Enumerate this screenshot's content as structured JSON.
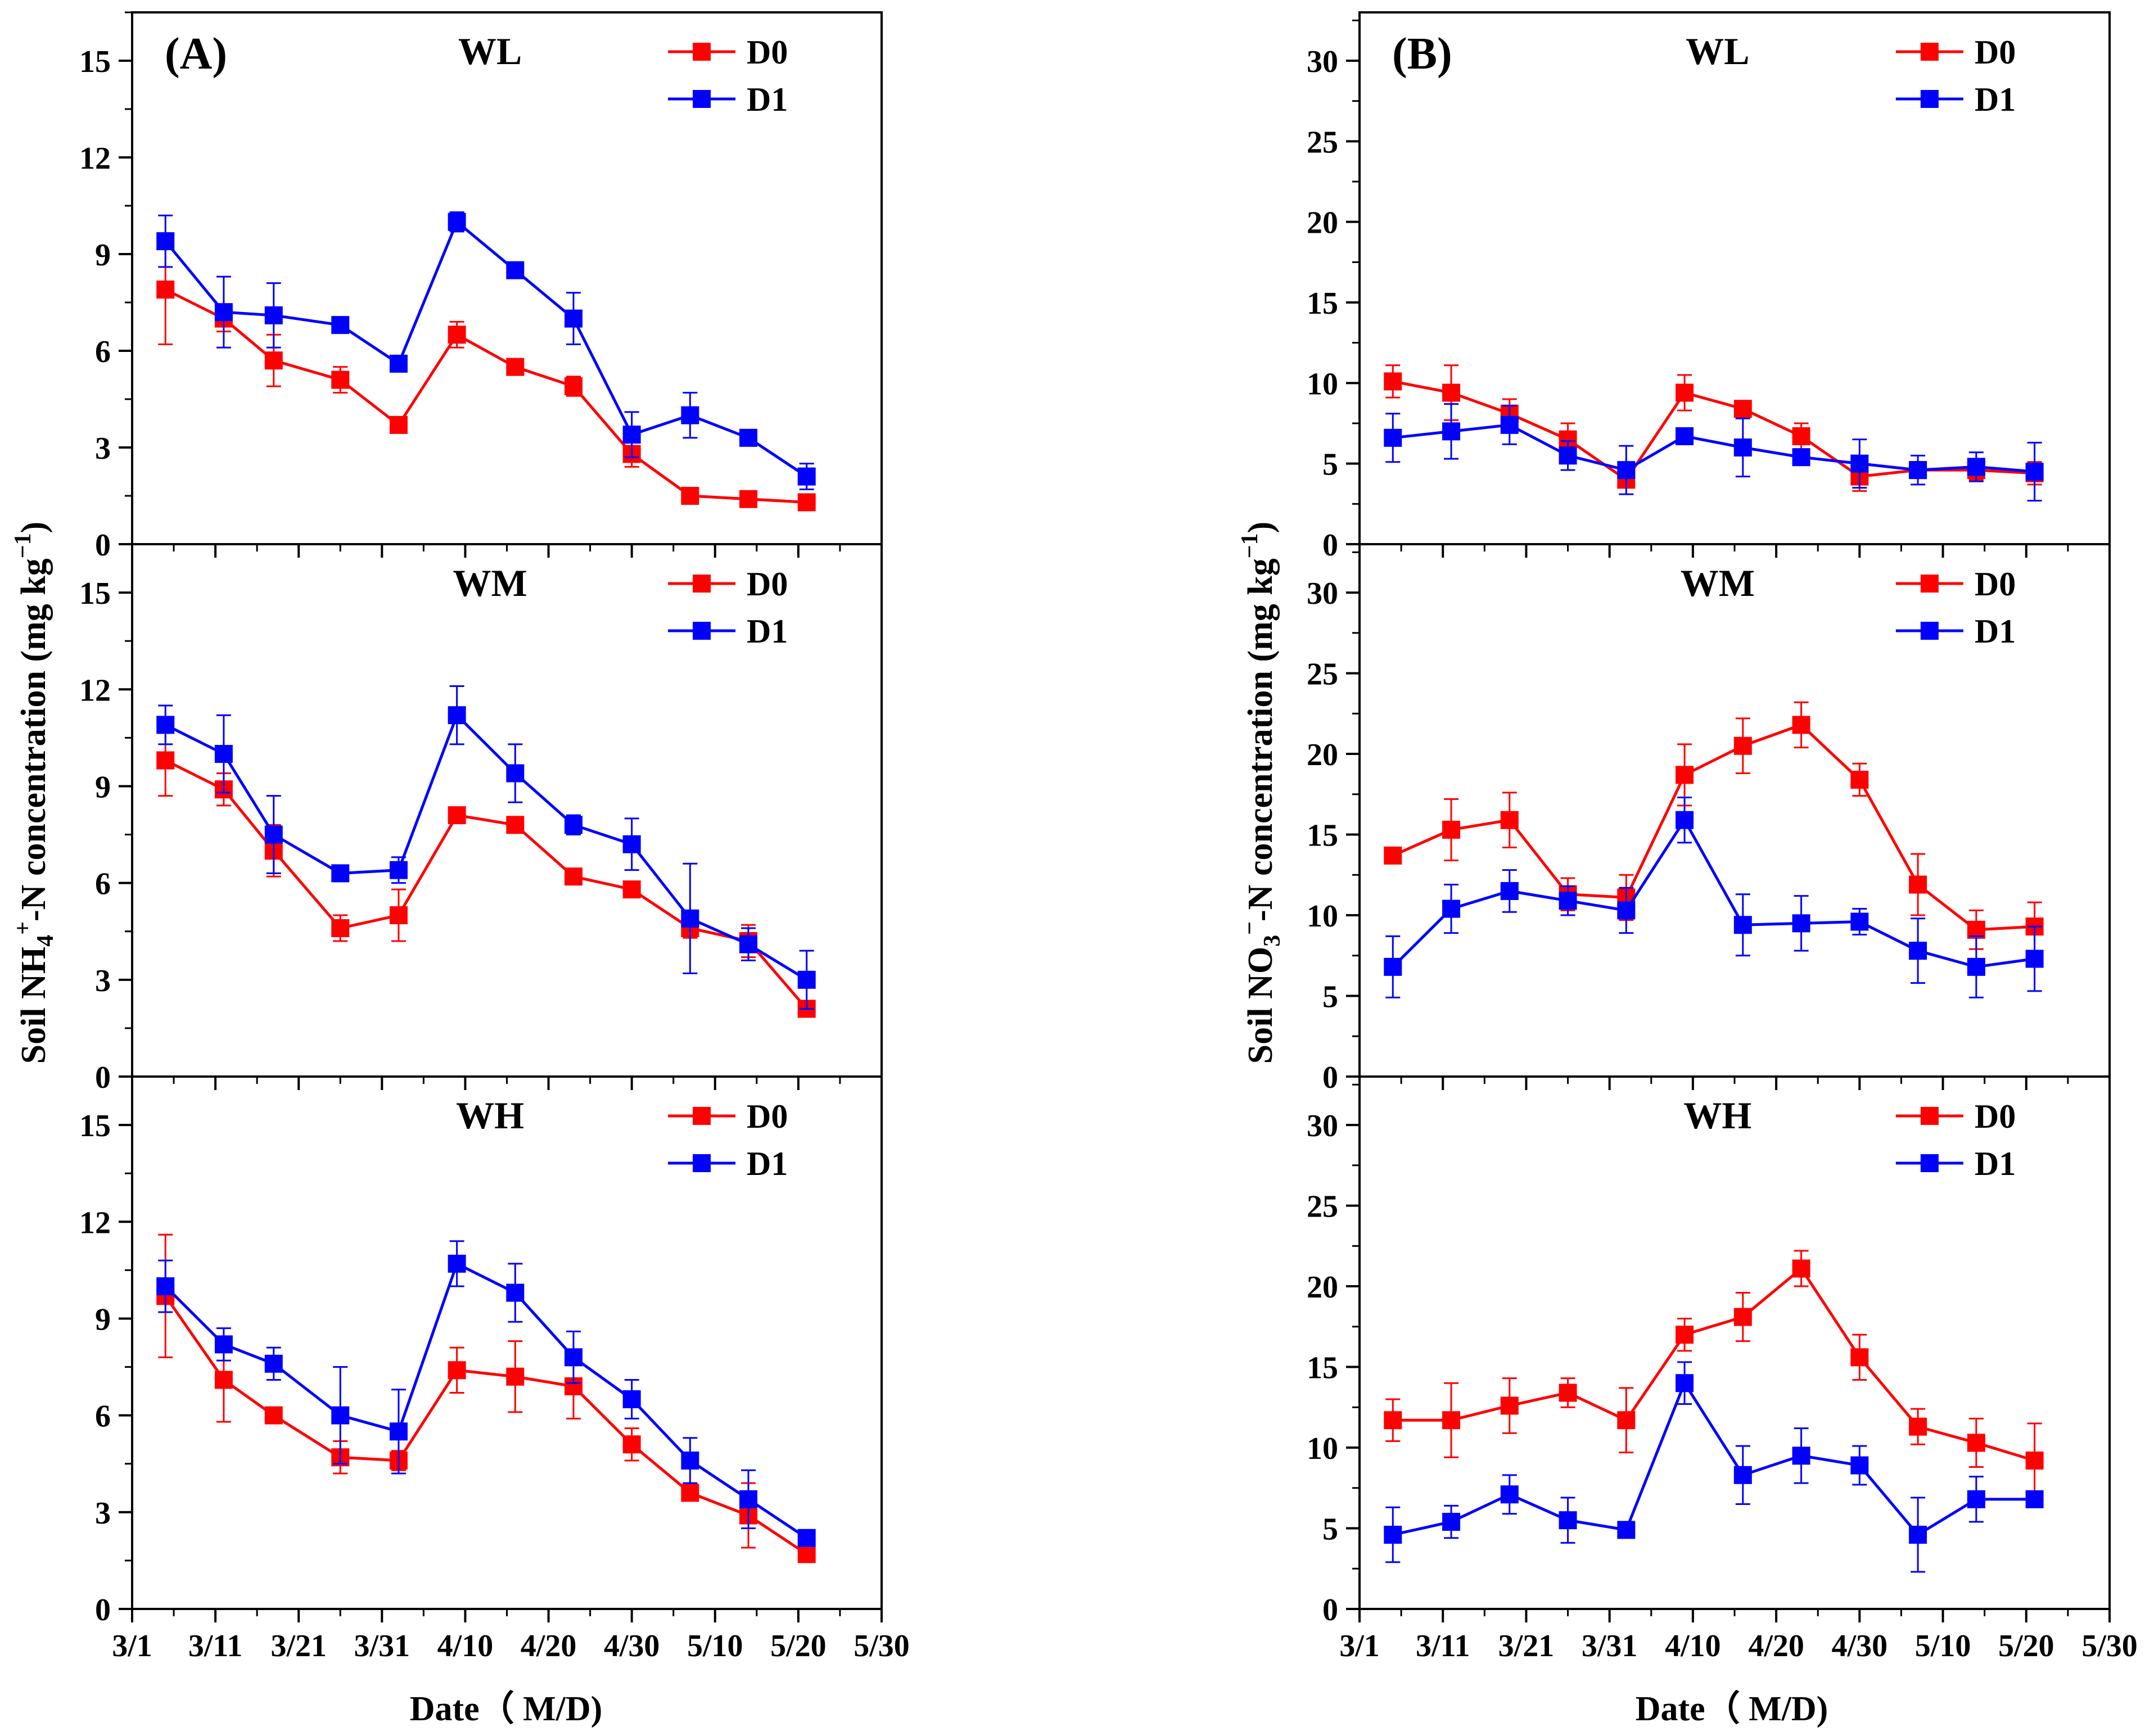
{
  "figure": {
    "x_axis_title": "Date（ M/D)",
    "colors": {
      "D0": "#ff0000",
      "D1": "#0000ff",
      "axis": "#000000"
    }
  },
  "chart_data": [
    {
      "type": "line",
      "panel": "A",
      "subplot": "WL",
      "panel_label": "(A)",
      "title": "WL",
      "ylabel": "Soil NH4+-N concentration (mg kg-1)",
      "ylim": [
        0,
        16.5
      ],
      "yticks": [
        0,
        3,
        6,
        9,
        12,
        15
      ],
      "xlim": [
        0,
        90
      ],
      "xticks": [
        0,
        10,
        20,
        30,
        40,
        50,
        60,
        70,
        80,
        90
      ],
      "xticklabels": [
        "3/1",
        "3/11",
        "3/21",
        "3/31",
        "4/10",
        "4/20",
        "4/30",
        "5/10",
        "5/20",
        "5/30"
      ],
      "x": [
        4,
        11,
        17,
        25,
        32,
        39,
        46,
        53,
        60,
        67,
        74,
        81
      ],
      "series": [
        {
          "name": "D0",
          "color": "#ff0000",
          "values": [
            7.9,
            7.0,
            5.7,
            5.1,
            3.7,
            6.5,
            5.5,
            4.9,
            2.8,
            1.5,
            1.4,
            1.3
          ],
          "err": [
            1.7,
            0.4,
            0.8,
            0.4,
            0.2,
            0.4,
            0.1,
            0.3,
            0.4,
            0.1,
            0.1,
            0.2
          ]
        },
        {
          "name": "D1",
          "color": "#0000ff",
          "values": [
            9.4,
            7.2,
            7.1,
            6.8,
            5.6,
            10.0,
            8.5,
            7.0,
            3.4,
            4.0,
            3.3,
            2.1
          ],
          "err": [
            0.8,
            1.1,
            1.0,
            0.2,
            0.1,
            0.3,
            0.1,
            0.8,
            0.7,
            0.7,
            0.1,
            0.4
          ]
        }
      ]
    },
    {
      "type": "line",
      "panel": "A",
      "subplot": "WM",
      "panel_label": "",
      "title": "WM",
      "ylabel": "Soil NH4+-N concentration (mg kg-1)",
      "ylim": [
        0,
        16.5
      ],
      "yticks": [
        0,
        3,
        6,
        9,
        12,
        15
      ],
      "xlim": [
        0,
        90
      ],
      "xticks": [
        0,
        10,
        20,
        30,
        40,
        50,
        60,
        70,
        80,
        90
      ],
      "xticklabels": [
        "3/1",
        "3/11",
        "3/21",
        "3/31",
        "4/10",
        "4/20",
        "4/30",
        "5/10",
        "5/20",
        "5/30"
      ],
      "x": [
        4,
        11,
        17,
        25,
        32,
        39,
        46,
        53,
        60,
        67,
        74,
        81
      ],
      "series": [
        {
          "name": "D0",
          "color": "#ff0000",
          "values": [
            9.8,
            8.9,
            7.0,
            4.6,
            5.0,
            8.1,
            7.8,
            6.2,
            5.8,
            4.6,
            4.2,
            2.1
          ],
          "err": [
            1.1,
            0.5,
            0.8,
            0.4,
            0.8,
            0.1,
            0.1,
            0.1,
            0.2,
            0.3,
            0.5,
            0.2
          ]
        },
        {
          "name": "D1",
          "color": "#0000ff",
          "values": [
            10.9,
            10.0,
            7.5,
            6.3,
            6.4,
            11.2,
            9.4,
            7.8,
            7.2,
            4.9,
            4.1,
            3.0
          ],
          "err": [
            0.6,
            1.2,
            1.2,
            0.1,
            0.4,
            0.9,
            0.9,
            0.3,
            0.8,
            1.7,
            0.5,
            0.9
          ]
        }
      ]
    },
    {
      "type": "line",
      "panel": "A",
      "subplot": "WH",
      "panel_label": "",
      "title": "WH",
      "ylabel": "Soil NH4+-N concentration (mg kg-1)",
      "ylim": [
        0,
        16.5
      ],
      "yticks": [
        0,
        3,
        6,
        9,
        12,
        15
      ],
      "xlim": [
        0,
        90
      ],
      "xticks": [
        0,
        10,
        20,
        30,
        40,
        50,
        60,
        70,
        80,
        90
      ],
      "xticklabels": [
        "3/1",
        "3/11",
        "3/21",
        "3/31",
        "4/10",
        "4/20",
        "4/30",
        "5/10",
        "5/20",
        "5/30"
      ],
      "x": [
        4,
        11,
        17,
        25,
        32,
        39,
        46,
        53,
        60,
        67,
        74,
        81
      ],
      "series": [
        {
          "name": "D0",
          "color": "#ff0000",
          "values": [
            9.7,
            7.1,
            6.0,
            4.7,
            4.6,
            7.4,
            7.2,
            6.9,
            5.1,
            3.6,
            2.9,
            1.7
          ],
          "err": [
            1.9,
            1.3,
            0.2,
            0.5,
            0.3,
            0.7,
            1.1,
            1.0,
            0.5,
            0.2,
            1.0,
            0.2
          ]
        },
        {
          "name": "D1",
          "color": "#0000ff",
          "values": [
            10.0,
            8.2,
            7.6,
            6.0,
            5.5,
            10.7,
            9.8,
            7.8,
            6.5,
            4.6,
            3.4,
            2.2
          ],
          "err": [
            0.8,
            0.5,
            0.5,
            1.5,
            1.3,
            0.7,
            0.9,
            0.8,
            0.6,
            0.7,
            0.9,
            0.2
          ]
        }
      ]
    },
    {
      "type": "line",
      "panel": "B",
      "subplot": "WL",
      "panel_label": "(B)",
      "title": "WL",
      "ylabel": "Soil NO3--N concentration (mg kg-1)",
      "ylim": [
        0,
        33
      ],
      "yticks": [
        0,
        5,
        10,
        15,
        20,
        25,
        30
      ],
      "xlim": [
        0,
        90
      ],
      "xticks": [
        0,
        10,
        20,
        30,
        40,
        50,
        60,
        70,
        80,
        90
      ],
      "xticklabels": [
        "3/1",
        "3/11",
        "3/21",
        "3/31",
        "4/10",
        "4/20",
        "4/30",
        "5/10",
        "5/20",
        "5/30"
      ],
      "x": [
        4,
        11,
        18,
        25,
        32,
        39,
        46,
        53,
        60,
        67,
        74,
        81
      ],
      "series": [
        {
          "name": "D0",
          "color": "#ff0000",
          "values": [
            10.1,
            9.4,
            8.1,
            6.5,
            4.0,
            9.4,
            8.4,
            6.7,
            4.2,
            4.6,
            4.6,
            4.4
          ],
          "err": [
            1.0,
            1.7,
            0.9,
            1.0,
            0.4,
            1.1,
            0.3,
            0.8,
            0.9,
            0.5,
            0.6,
            0.7
          ]
        },
        {
          "name": "D1",
          "color": "#0000ff",
          "values": [
            6.6,
            7.0,
            7.4,
            5.5,
            4.6,
            6.7,
            6.0,
            5.4,
            5.0,
            4.6,
            4.8,
            4.5
          ],
          "err": [
            1.5,
            1.7,
            1.2,
            0.9,
            1.5,
            0.3,
            1.8,
            0.4,
            1.5,
            0.9,
            0.9,
            1.8
          ]
        }
      ]
    },
    {
      "type": "line",
      "panel": "B",
      "subplot": "WM",
      "panel_label": "",
      "title": "WM",
      "ylabel": "Soil NO3--N concentration (mg kg-1)",
      "ylim": [
        0,
        33
      ],
      "yticks": [
        0,
        5,
        10,
        15,
        20,
        25,
        30
      ],
      "xlim": [
        0,
        90
      ],
      "xticks": [
        0,
        10,
        20,
        30,
        40,
        50,
        60,
        70,
        80,
        90
      ],
      "xticklabels": [
        "3/1",
        "3/11",
        "3/21",
        "3/31",
        "4/10",
        "4/20",
        "4/30",
        "5/10",
        "5/20",
        "5/30"
      ],
      "x": [
        4,
        11,
        18,
        25,
        32,
        39,
        46,
        53,
        60,
        67,
        74,
        81
      ],
      "series": [
        {
          "name": "D0",
          "color": "#ff0000",
          "values": [
            13.7,
            15.3,
            15.9,
            11.3,
            11.1,
            18.7,
            20.5,
            21.8,
            18.4,
            11.9,
            9.1,
            9.3
          ],
          "err": [
            0.2,
            1.9,
            1.7,
            1.0,
            1.4,
            1.9,
            1.7,
            1.4,
            1.0,
            1.9,
            1.2,
            1.5
          ]
        },
        {
          "name": "D1",
          "color": "#0000ff",
          "values": [
            6.8,
            10.4,
            11.5,
            10.9,
            10.3,
            15.9,
            9.4,
            9.5,
            9.6,
            7.8,
            6.8,
            7.3
          ],
          "err": [
            1.9,
            1.5,
            1.3,
            0.9,
            1.4,
            1.4,
            1.9,
            1.7,
            0.8,
            2.0,
            1.9,
            2.0
          ]
        }
      ]
    },
    {
      "type": "line",
      "panel": "B",
      "subplot": "WH",
      "panel_label": "",
      "title": "WH",
      "ylabel": "Soil NO3--N concentration (mg kg-1)",
      "ylim": [
        0,
        33
      ],
      "yticks": [
        0,
        5,
        10,
        15,
        20,
        25,
        30
      ],
      "xlim": [
        0,
        90
      ],
      "xticks": [
        0,
        10,
        20,
        30,
        40,
        50,
        60,
        70,
        80,
        90
      ],
      "xticklabels": [
        "3/1",
        "3/11",
        "3/21",
        "3/31",
        "4/10",
        "4/20",
        "4/30",
        "5/10",
        "5/20",
        "5/30"
      ],
      "x": [
        4,
        11,
        18,
        25,
        32,
        39,
        46,
        53,
        60,
        67,
        74,
        81
      ],
      "series": [
        {
          "name": "D0",
          "color": "#ff0000",
          "values": [
            11.7,
            11.7,
            12.6,
            13.4,
            11.7,
            17.0,
            18.1,
            21.1,
            15.6,
            11.3,
            10.3,
            9.2
          ],
          "err": [
            1.3,
            2.3,
            1.7,
            0.9,
            2.0,
            1.0,
            1.5,
            1.1,
            1.4,
            1.1,
            1.5,
            2.3
          ]
        },
        {
          "name": "D1",
          "color": "#0000ff",
          "values": [
            4.6,
            5.4,
            7.1,
            5.5,
            4.9,
            14.0,
            8.3,
            9.5,
            8.9,
            4.6,
            6.8,
            6.8
          ],
          "err": [
            1.7,
            1.0,
            1.2,
            1.4,
            0.1,
            1.3,
            1.8,
            1.7,
            1.2,
            2.3,
            1.4,
            0.2
          ]
        }
      ]
    }
  ]
}
